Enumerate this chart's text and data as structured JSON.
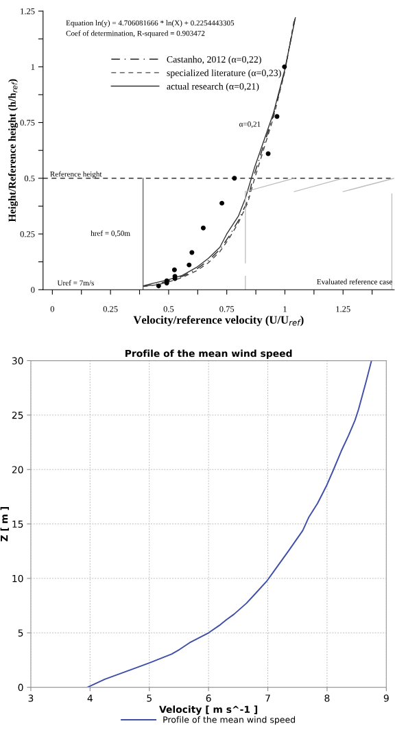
{
  "chart_data": [
    {
      "type": "line",
      "xlabel": "Velocity/reference velocity (U/U$_{ref}$)",
      "ylabel": "Height/Reference height (h/h$_{ref}$)",
      "xlim": [
        -0.04,
        1.47
      ],
      "ylim": [
        0,
        1.25
      ],
      "xticks": [
        0,
        {
          "value": 0.125,
          "label": null
        },
        0.25,
        {
          "value": 0.375,
          "label": null
        },
        0.5,
        {
          "value": 0.625,
          "label": null
        },
        0.75,
        {
          "value": 0.875,
          "label": null
        },
        1,
        {
          "value": 1.125,
          "label": null
        },
        1.25,
        {
          "value": 1.375,
          "label": null
        }
      ],
      "yticks": [
        0,
        {
          "value": 0.125,
          "label": null
        },
        0.25,
        {
          "value": 0.375,
          "label": null
        },
        0.5,
        {
          "value": 0.625,
          "label": null
        },
        0.75,
        {
          "value": 0.875,
          "label": null
        },
        1,
        {
          "value": 1.125,
          "label": null
        },
        1.25
      ],
      "grid": false,
      "legend": "top left",
      "series": [
        {
          "name": "Castanho, 2012 (α=0,22)",
          "type": "line",
          "color": "#222222",
          "line_style": "dashdot",
          "x": [
            0.39,
            0.45,
            0.5,
            0.56,
            0.62,
            0.67,
            0.72,
            0.76,
            0.8,
            0.84,
            0.86,
            0.9,
            0.95,
            1.0,
            1.043
          ],
          "values": [
            0.015,
            0.025,
            0.04,
            0.06,
            0.092,
            0.13,
            0.18,
            0.24,
            0.31,
            0.4,
            0.49,
            0.62,
            0.78,
            0.985,
            1.215
          ]
        },
        {
          "name": "specialized literature (α=0,23)",
          "type": "line",
          "color": "#444444",
          "line_style": "dashed",
          "x": [
            0.39,
            0.45,
            0.5,
            0.56,
            0.62,
            0.67,
            0.72,
            0.76,
            0.8,
            0.84,
            0.87,
            0.9,
            0.95,
            1.0,
            1.04
          ],
          "values": [
            0.014,
            0.022,
            0.035,
            0.055,
            0.085,
            0.12,
            0.17,
            0.23,
            0.3,
            0.39,
            0.5,
            0.6,
            0.77,
            0.98,
            1.21
          ]
        },
        {
          "name": "actual research (α=0,21)",
          "type": "line",
          "color": "#333333",
          "line_style": "solid",
          "x": [
            0.39,
            0.43,
            0.5,
            0.56,
            0.62,
            0.67,
            0.72,
            0.75,
            0.8,
            0.83,
            0.85,
            0.87,
            0.9,
            0.95,
            1.0,
            1.045
          ],
          "values": [
            0.017,
            0.028,
            0.045,
            0.065,
            0.1,
            0.14,
            0.19,
            0.25,
            0.33,
            0.41,
            0.48,
            0.55,
            0.64,
            0.79,
            0.99,
            1.22
          ]
        },
        {
          "type": "scatter",
          "marker": "circle",
          "color": "#000000",
          "x": [
            0.457,
            0.492,
            0.492,
            0.525,
            0.527,
            0.527,
            0.588,
            0.6,
            0.649,
            0.729,
            0.783,
            0.928,
            0.966,
            0.998
          ],
          "values": [
            0.017,
            0.03,
            0.04,
            0.089,
            0.06,
            0.05,
            0.111,
            0.167,
            0.277,
            0.388,
            0.5,
            0.61,
            0.777,
            1.0
          ]
        }
      ],
      "ref_lines": [
        {
          "axis": "y",
          "value": 0.5,
          "label": "Reference height",
          "color": "#333333",
          "line_style": "dashed"
        }
      ],
      "annotations": [
        "Equation ln(y) = 4.706081666 * ln(X) + 0.2254443305",
        "Coef of determination, R-squared = 0.903472",
        "α=0,21",
        "href = 0,50m",
        "Uref = 7m/s",
        "Evaluated reference case"
      ]
    },
    {
      "type": "line",
      "title": "Profile of the mean wind speed",
      "xlabel": "Velocity [ m s^-1 ]",
      "ylabel": "Z [ m ]",
      "xlim": [
        3,
        9
      ],
      "ylim": [
        0,
        30
      ],
      "xticks": [
        3,
        4,
        5,
        6,
        7,
        8,
        9
      ],
      "yticks": [
        0,
        5,
        10,
        15,
        20,
        25,
        30
      ],
      "grid": true,
      "legend": "bottom",
      "series": [
        {
          "name": "Profile of the mean wind speed",
          "color": "#3f4fa8",
          "x": [
            3.957,
            4.25,
            4.67,
            5.0,
            5.38,
            5.51,
            5.68,
            6.0,
            6.2,
            6.3,
            6.43,
            6.64,
            6.81,
            6.98,
            7.1,
            7.36,
            7.59,
            7.69,
            7.84,
            7.99,
            8.11,
            8.24,
            8.36,
            8.47,
            8.53,
            8.66,
            8.75
          ],
          "values": [
            0,
            0.74,
            1.57,
            2.24,
            3.06,
            3.47,
            4.09,
            5.0,
            5.75,
            6.2,
            6.71,
            7.72,
            8.72,
            9.73,
            10.63,
            12.6,
            14.4,
            15.6,
            16.9,
            18.5,
            20.0,
            21.7,
            23.1,
            24.5,
            25.5,
            28.1,
            30
          ]
        }
      ]
    }
  ]
}
